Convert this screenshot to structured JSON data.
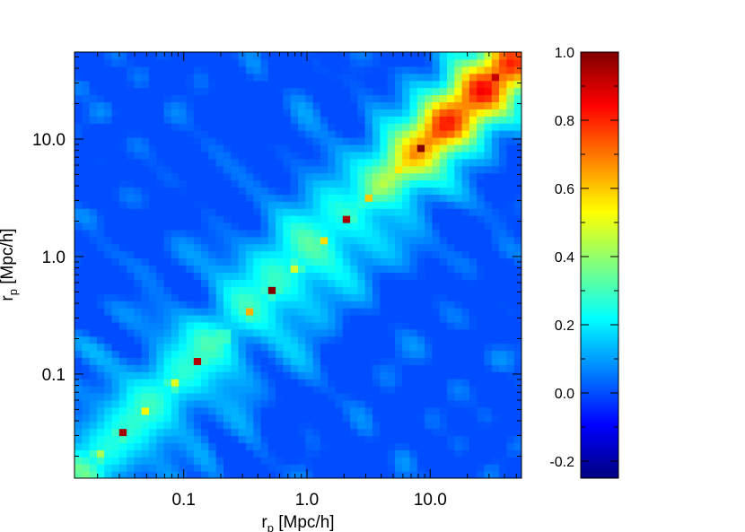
{
  "chart_data": {
    "type": "heatmap",
    "title": "",
    "x_axis": {
      "label": "r",
      "label_sub": "p",
      "label_unit": " [Mpc/h]",
      "scale": "log",
      "range": [
        0.013,
        55
      ],
      "ticks": [
        {
          "value": 0.1,
          "label": "0.1"
        },
        {
          "value": 1.0,
          "label": "1.0"
        },
        {
          "value": 10.0,
          "label": "10.0"
        }
      ]
    },
    "y_axis": {
      "label": "r",
      "label_sub": "p",
      "label_unit": " [Mpc/h]",
      "scale": "log",
      "range": [
        0.013,
        55
      ],
      "ticks": [
        {
          "value": 0.1,
          "label": "0.1"
        },
        {
          "value": 1.0,
          "label": "1.0"
        },
        {
          "value": 10.0,
          "label": "10.0"
        }
      ]
    },
    "colorbar": {
      "range": [
        -0.25,
        1.0
      ],
      "ticks": [
        {
          "value": -0.2,
          "label": "-0.2"
        },
        {
          "value": 0.0,
          "label": "0.0"
        },
        {
          "value": 0.2,
          "label": "0.2"
        },
        {
          "value": 0.4,
          "label": "0.4"
        },
        {
          "value": 0.6,
          "label": "0.6"
        },
        {
          "value": 0.8,
          "label": "0.8"
        },
        {
          "value": 1.0,
          "label": "1.0"
        }
      ]
    },
    "bins_rp": [
      0.02,
      0.032,
      0.051,
      0.081,
      0.13,
      0.21,
      0.33,
      0.52,
      0.83,
      1.32,
      2.1,
      3.3,
      5.3,
      8.4,
      13.3,
      21.1,
      33.5
    ],
    "diagonal_value": 1.0,
    "colormap": "jet"
  }
}
